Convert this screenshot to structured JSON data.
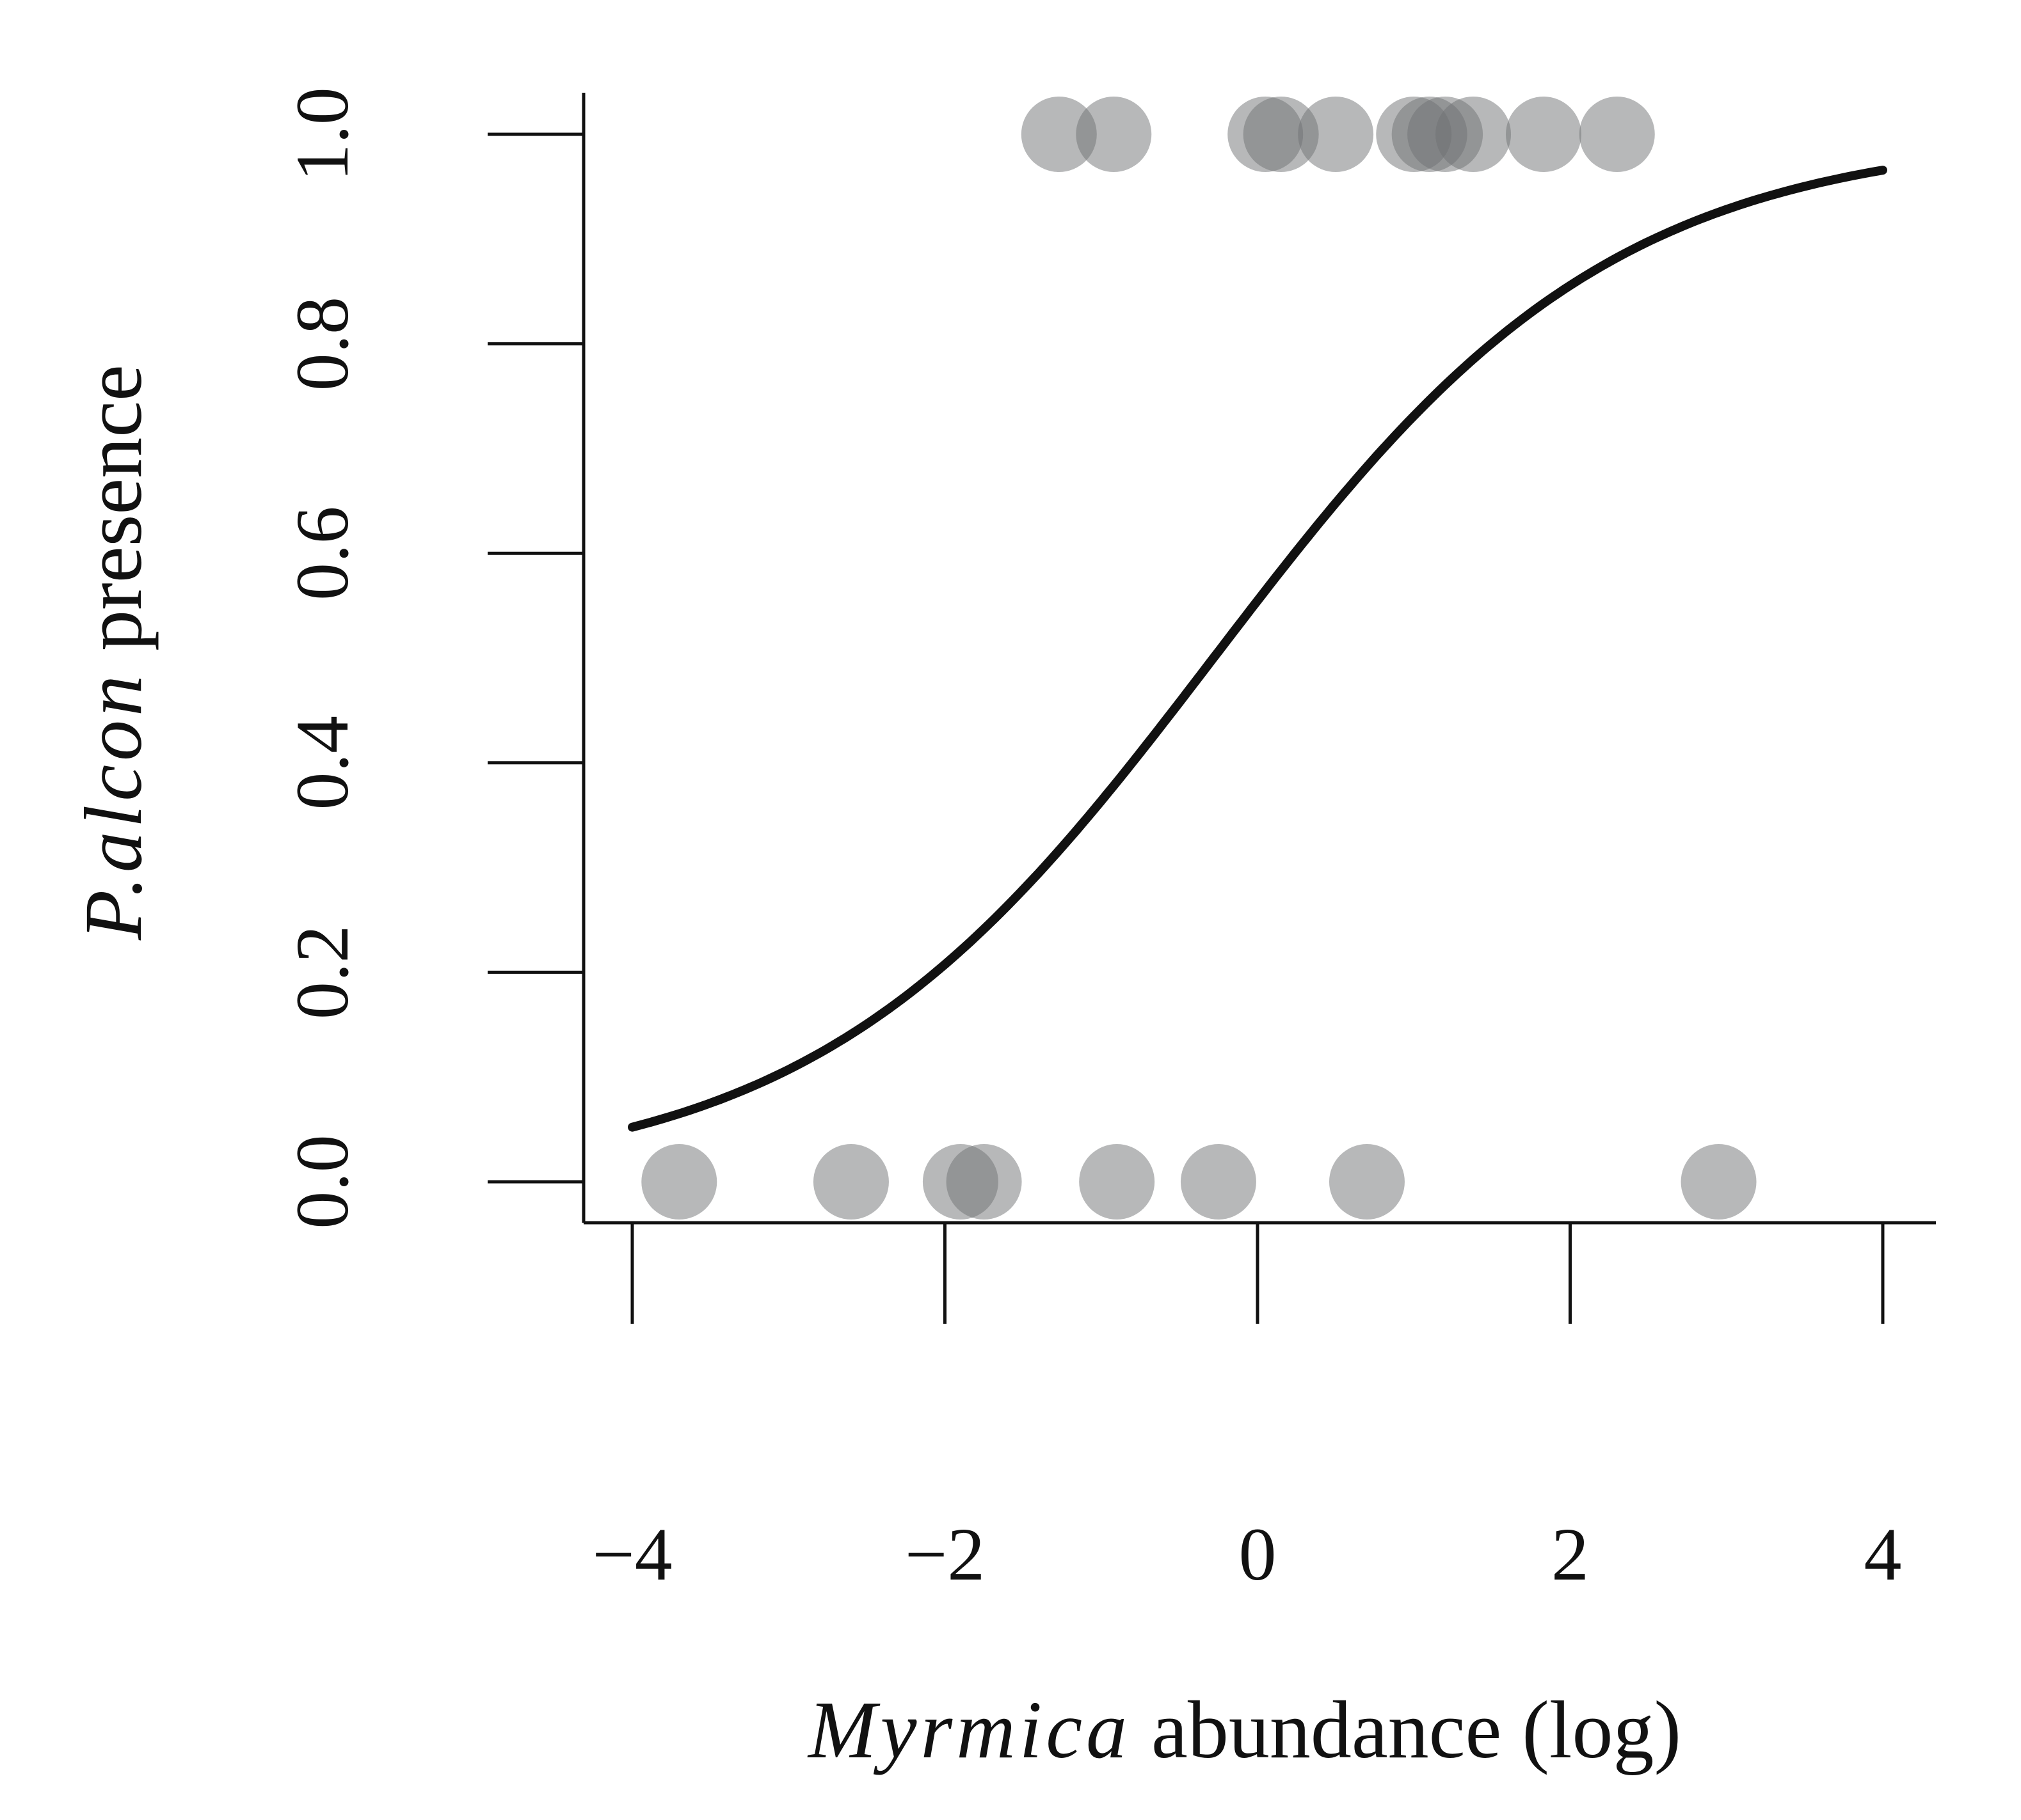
{
  "chart_data": {
    "type": "scatter",
    "xlabel": {
      "italic": "Myrmica",
      "rest": " abundance (log)"
    },
    "ylabel": {
      "italic": "P.alcon",
      "rest": " presence"
    },
    "xlim": [
      -4,
      4
    ],
    "ylim": [
      0,
      1
    ],
    "xticks": [
      -4,
      -2,
      0,
      2,
      4
    ],
    "xtick_labels": [
      "−4",
      "−2",
      "0",
      "2",
      "4"
    ],
    "yticks": [
      0,
      0.2,
      0.4,
      0.6,
      0.8,
      1.0
    ],
    "ytick_labels": [
      "0.0",
      "0.2",
      "0.4",
      "0.6",
      "0.8",
      "1.0"
    ],
    "grid": false,
    "legend": "none",
    "points": [
      {
        "x": -3.7,
        "y": 0
      },
      {
        "x": -2.6,
        "y": 0
      },
      {
        "x": -1.9,
        "y": 0
      },
      {
        "x": -1.75,
        "y": 0
      },
      {
        "x": -0.9,
        "y": 0
      },
      {
        "x": -0.25,
        "y": 0
      },
      {
        "x": 0.7,
        "y": 0
      },
      {
        "x": 2.95,
        "y": 0
      },
      {
        "x": -1.27,
        "y": 1
      },
      {
        "x": -0.92,
        "y": 1
      },
      {
        "x": 0.05,
        "y": 1
      },
      {
        "x": 0.15,
        "y": 1
      },
      {
        "x": 0.5,
        "y": 1
      },
      {
        "x": 1.0,
        "y": 1
      },
      {
        "x": 1.1,
        "y": 1
      },
      {
        "x": 1.2,
        "y": 1
      },
      {
        "x": 1.38,
        "y": 1
      },
      {
        "x": 1.83,
        "y": 1
      },
      {
        "x": 2.3,
        "y": 1
      }
    ],
    "fit_line": {
      "type": "logistic",
      "intercept": 0.22,
      "slope": 0.78,
      "x_range": [
        -4,
        4
      ]
    },
    "colors": {
      "points": "#6f7174",
      "line": "#111111",
      "axis": "#111111"
    }
  }
}
